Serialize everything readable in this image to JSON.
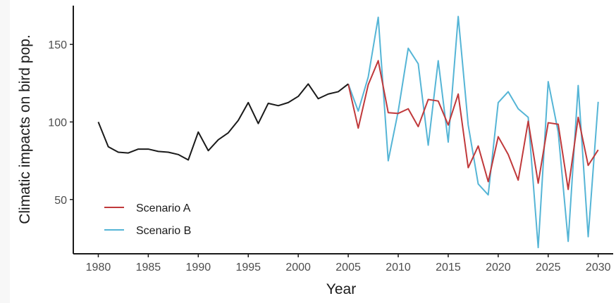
{
  "chart_data": {
    "type": "line",
    "title": "",
    "xlabel": "Year",
    "ylabel": "Climatic impacts on bird pop.",
    "xlim": [
      1977.5,
      2031.5
    ],
    "ylim": [
      15,
      175
    ],
    "xticks": [
      1980,
      1985,
      1990,
      1995,
      2000,
      2005,
      2010,
      2015,
      2020,
      2025,
      2030
    ],
    "yticks": [
      50,
      100,
      150
    ],
    "xtick_labels": [
      "1980",
      "1985",
      "1990",
      "1995",
      "2000",
      "2005",
      "2010",
      "2015",
      "2020",
      "2025",
      "2030"
    ],
    "ytick_labels": [
      "50",
      "100",
      "150"
    ],
    "grid": false,
    "legend_position": "bottom-left",
    "series": [
      {
        "name": "",
        "color": "#1a1a1a",
        "x": [
          1980,
          1981,
          1982,
          1983,
          1984,
          1985,
          1986,
          1987,
          1988,
          1989,
          1990,
          1991,
          1992,
          1993,
          1994,
          1995,
          1996,
          1997,
          1998,
          1999,
          2000,
          2001,
          2002,
          2003,
          2004,
          2005
        ],
        "values": [
          100,
          84,
          80.5,
          80,
          82.5,
          82.5,
          81,
          80.5,
          79,
          75.5,
          93.5,
          81.5,
          88.5,
          93,
          101,
          112.5,
          99,
          112,
          110.5,
          112.5,
          116.5,
          124.5,
          115,
          118,
          119.5,
          124.5
        ]
      },
      {
        "name": "Scenario A",
        "color": "#c0393b",
        "x": [
          2005,
          2006,
          2007,
          2008,
          2009,
          2010,
          2011,
          2012,
          2013,
          2014,
          2015,
          2016,
          2017,
          2018,
          2019,
          2020,
          2021,
          2022,
          2023,
          2024,
          2025,
          2026,
          2027,
          2028,
          2029,
          2030
        ],
        "values": [
          124.5,
          96,
          124,
          139.5,
          106,
          105.5,
          108.5,
          97,
          114.5,
          113.5,
          98,
          118,
          70.5,
          84.5,
          61.5,
          90.5,
          79,
          62.5,
          100.5,
          60.5,
          99.5,
          98.5,
          56.5,
          103,
          72,
          82
        ]
      },
      {
        "name": "Scenario B",
        "color": "#55b5d6",
        "x": [
          2005,
          2006,
          2007,
          2008,
          2009,
          2010,
          2011,
          2012,
          2013,
          2014,
          2015,
          2016,
          2017,
          2018,
          2019,
          2020,
          2021,
          2022,
          2023,
          2024,
          2025,
          2026,
          2027,
          2028,
          2029,
          2030
        ],
        "values": [
          124.5,
          107,
          129,
          167.5,
          75,
          107,
          147.5,
          137.5,
          85,
          139.5,
          87,
          168,
          98,
          60,
          53,
          112.5,
          119.5,
          108.5,
          103,
          19,
          126,
          93.5,
          23,
          123.5,
          26,
          113
        ]
      }
    ]
  }
}
